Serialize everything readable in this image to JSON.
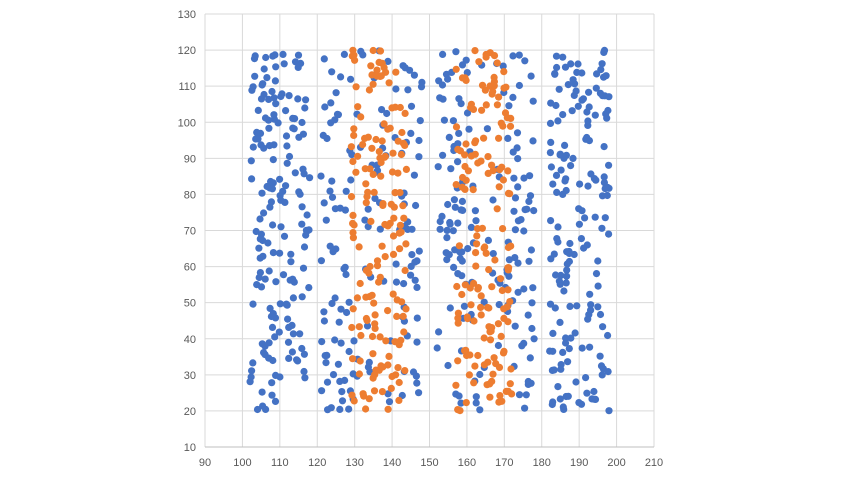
{
  "chart_data": {
    "type": "scatter",
    "title": "",
    "xlabel": "",
    "ylabel": "",
    "xlim": [
      90,
      210
    ],
    "ylim": [
      10,
      130
    ],
    "x_ticks": [
      "90",
      "100",
      "110",
      "120",
      "130",
      "140",
      "150",
      "160",
      "170",
      "180",
      "190",
      "200",
      "210"
    ],
    "y_ticks": [
      "130",
      "120",
      "110",
      "100",
      "90",
      "80",
      "70",
      "60",
      "50",
      "40",
      "30",
      "20",
      "10"
    ],
    "grid": true,
    "legend": "none",
    "series": [
      {
        "color": "#4472c4",
        "regions": [
          {
            "x_range": [
              102,
              118
            ],
            "y_range": [
              20,
              120
            ],
            "count": 170
          },
          {
            "x_range": [
              121,
              130
            ],
            "y_range": [
              20,
              120
            ],
            "count": 65
          },
          {
            "x_range": [
              142,
              148
            ],
            "y_range": [
              20,
              120
            ],
            "count": 45
          },
          {
            "x_range": [
              152,
              159
            ],
            "y_range": [
              20,
              120
            ],
            "count": 60
          },
          {
            "x_range": [
              170,
              178
            ],
            "y_range": [
              20,
              120
            ],
            "count": 60
          },
          {
            "x_range": [
              182,
              198
            ],
            "y_range": [
              20,
              120
            ],
            "count": 170
          },
          {
            "x_range": [
              130,
              142
            ],
            "y_range": [
              20,
              120
            ],
            "count": 40
          },
          {
            "x_range": [
              159,
              170
            ],
            "y_range": [
              20,
              120
            ],
            "count": 40
          }
        ]
      },
      {
        "color": "#ed7d31",
        "regions": [
          {
            "x_range": [
              129,
              144
            ],
            "y_range": [
              20,
              120
            ],
            "count": 160
          },
          {
            "x_range": [
              157,
              172
            ],
            "y_range": [
              20,
              120
            ],
            "count": 155
          }
        ]
      }
    ]
  }
}
